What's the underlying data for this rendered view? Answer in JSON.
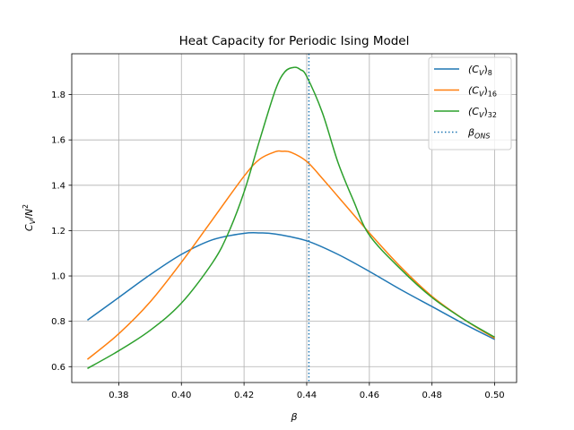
{
  "chart_data": {
    "type": "line",
    "title": "Heat Capacity for Periodic Ising Model",
    "xlabel": "β",
    "ylabel": "C_V/N²",
    "xlim": [
      0.365,
      0.507
    ],
    "ylim": [
      0.53,
      1.98
    ],
    "xticks": [
      0.38,
      0.4,
      0.42,
      0.44,
      0.46,
      0.48,
      0.5
    ],
    "xtick_labels": [
      "0.38",
      "0.40",
      "0.42",
      "0.44",
      "0.46",
      "0.48",
      "0.50"
    ],
    "yticks": [
      0.6,
      0.8,
      1.0,
      1.2,
      1.4,
      1.6,
      1.8
    ],
    "ytick_labels": [
      "0.6",
      "0.8",
      "1.0",
      "1.2",
      "1.4",
      "1.6",
      "1.8"
    ],
    "grid": true,
    "legend_position": "top-right",
    "series": [
      {
        "name": "(C_V)_8",
        "legend_main": "(C",
        "legend_sub": "V",
        "legend_close": ")",
        "legend_sub2": "8",
        "color": "#1f77b4",
        "x": [
          0.37,
          0.38,
          0.39,
          0.4,
          0.41,
          0.42,
          0.425,
          0.43,
          0.44,
          0.45,
          0.46,
          0.47,
          0.48,
          0.49,
          0.5
        ],
        "y": [
          0.805,
          0.905,
          1.005,
          1.095,
          1.16,
          1.188,
          1.19,
          1.185,
          1.155,
          1.095,
          1.02,
          0.94,
          0.865,
          0.79,
          0.72
        ]
      },
      {
        "name": "(C_V)_16",
        "legend_main": "(C",
        "legend_sub": "V",
        "legend_close": ")",
        "legend_sub2": "16",
        "color": "#ff7f0e",
        "x": [
          0.37,
          0.38,
          0.39,
          0.4,
          0.41,
          0.42,
          0.425,
          0.43,
          0.432,
          0.435,
          0.44,
          0.445,
          0.45,
          0.46,
          0.47,
          0.48,
          0.49,
          0.5
        ],
        "y": [
          0.632,
          0.745,
          0.885,
          1.06,
          1.25,
          1.44,
          1.515,
          1.548,
          1.55,
          1.545,
          1.505,
          1.43,
          1.35,
          1.19,
          1.04,
          0.91,
          0.81,
          0.725
        ]
      },
      {
        "name": "(C_V)_32",
        "legend_main": "(C",
        "legend_sub": "V",
        "legend_close": ")",
        "legend_sub2": "32",
        "color": "#2ca02c",
        "x": [
          0.37,
          0.38,
          0.39,
          0.4,
          0.41,
          0.415,
          0.42,
          0.425,
          0.43,
          0.433,
          0.436,
          0.438,
          0.44,
          0.445,
          0.45,
          0.455,
          0.46,
          0.47,
          0.48,
          0.49,
          0.5
        ],
        "y": [
          0.592,
          0.67,
          0.76,
          0.88,
          1.06,
          1.19,
          1.37,
          1.6,
          1.82,
          1.9,
          1.92,
          1.91,
          1.88,
          1.72,
          1.5,
          1.33,
          1.18,
          1.03,
          0.905,
          0.81,
          0.73
        ]
      }
    ],
    "vlines": [
      {
        "name": "β_ONS",
        "legend_main": "β",
        "legend_sub": "ONS",
        "x": 0.4407,
        "color": "#1f77b4",
        "style": "dotted"
      }
    ]
  }
}
